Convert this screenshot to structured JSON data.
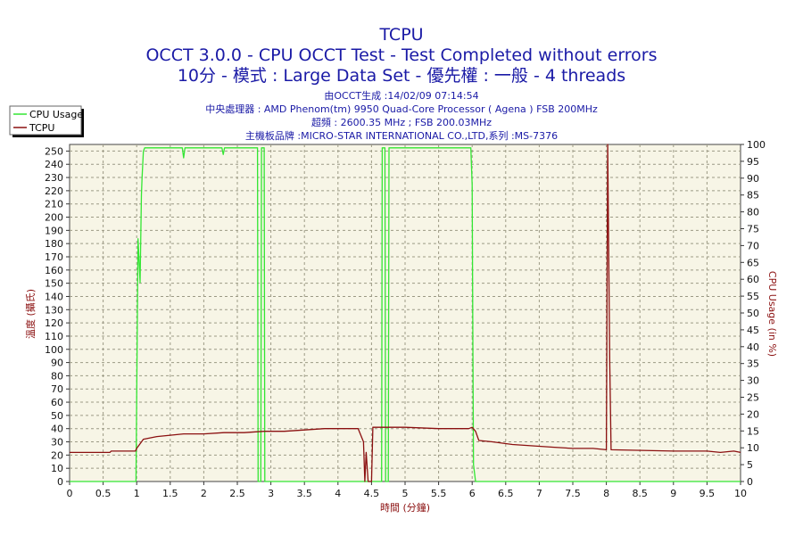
{
  "header": {
    "title": "TCPU",
    "line2": "OCCT 3.0.0 - CPU OCCT Test - Test Completed without errors",
    "line3": "10分 - 模式 : Large Data Set - 優先權 : 一般 - 4 threads",
    "info1": "由OCCT生成 :14/02/09 07:14:54",
    "info2": "中央處理器 : AMD Phenom(tm) 9950 Quad-Core Processor ( Agena ) FSB 200MHz",
    "info3": "超頻 : 2600.35 MHz ; FSB 200.03MHz",
    "info4": "主機板品牌 :MICRO-STAR INTERNATIONAL CO.,LTD,系列 :MS-7376"
  },
  "colors": {
    "cpu_usage": "#33e633",
    "tcpu": "#8b1010",
    "plot_bg": "#f7f5e6",
    "grid": "#9c9a85"
  },
  "chart_data": {
    "type": "line",
    "xlabel": "時間 (分鐘)",
    "ylabel_left": "溫度 (攝氏)",
    "ylabel_right": "CPU Usage (in %)",
    "xlim": [
      0,
      10
    ],
    "ylim_left": [
      0,
      255
    ],
    "ylim_right": [
      0,
      100
    ],
    "x_ticks": [
      "0",
      "0.5",
      "1",
      "1.5",
      "2",
      "2.5",
      "3",
      "3.5",
      "4",
      "4.5",
      "5",
      "5.5",
      "6",
      "6.5",
      "7",
      "7.5",
      "8",
      "8.5",
      "9",
      "9.5",
      "10"
    ],
    "y_ticks_left": [
      "0",
      "10",
      "20",
      "30",
      "40",
      "50",
      "60",
      "70",
      "80",
      "90",
      "100",
      "110",
      "120",
      "130",
      "140",
      "150",
      "160",
      "170",
      "180",
      "190",
      "200",
      "210",
      "220",
      "230",
      "240",
      "250"
    ],
    "y_ticks_right": [
      "0",
      "5",
      "10",
      "15",
      "20",
      "25",
      "30",
      "35",
      "40",
      "45",
      "50",
      "55",
      "60",
      "65",
      "70",
      "75",
      "80",
      "85",
      "90",
      "95",
      "100"
    ],
    "legend": [
      "CPU Usage",
      "TCPU"
    ],
    "legend_position": "top-left",
    "grid": true,
    "series": [
      {
        "name": "CPU Usage",
        "axis": "right",
        "x": [
          0,
          0.99,
          1.0,
          1.02,
          1.05,
          1.07,
          1.08,
          1.1,
          1.12,
          1.15,
          1.2,
          1.5,
          1.68,
          1.7,
          1.72,
          2.0,
          2.27,
          2.29,
          2.31,
          2.6,
          2.8,
          2.81,
          2.85,
          2.86,
          2.9,
          2.91,
          3.5,
          4.0,
          4.5,
          4.65,
          4.66,
          4.7,
          4.71,
          4.75,
          4.76,
          5.0,
          5.5,
          5.98,
          6.0,
          6.01,
          6.02,
          6.05,
          6.06,
          10.0
        ],
        "values": [
          0,
          0,
          25,
          72,
          59,
          85,
          90,
          98,
          99,
          99,
          99,
          99,
          99,
          96,
          99,
          99,
          99,
          97,
          99,
          99,
          99,
          0,
          0,
          99,
          99,
          0,
          0,
          0,
          0,
          0,
          99,
          99,
          0,
          0,
          99,
          99,
          99,
          99,
          88,
          40,
          5,
          0,
          0,
          0
        ]
      },
      {
        "name": "TCPU",
        "axis": "left",
        "x": [
          0,
          0.6,
          0.62,
          0.98,
          1.0,
          1.1,
          1.2,
          1.3,
          1.5,
          1.7,
          2.0,
          2.3,
          2.6,
          2.9,
          3.2,
          3.5,
          3.8,
          4.1,
          4.3,
          4.38,
          4.4,
          4.42,
          4.45,
          4.5,
          4.52,
          4.55,
          5.0,
          5.5,
          5.8,
          5.95,
          6.0,
          6.05,
          6.1,
          6.3,
          6.6,
          6.9,
          7.2,
          7.5,
          7.8,
          8.0,
          8.02,
          8.05,
          8.07,
          9.0,
          9.5,
          9.7,
          9.9,
          10.0
        ],
        "values": [
          22,
          22,
          23,
          23,
          25,
          32,
          33,
          34,
          35,
          36,
          36,
          37,
          37,
          38,
          38,
          39,
          40,
          40,
          40,
          30,
          0,
          22,
          0,
          0,
          41,
          41,
          41,
          40,
          40,
          40,
          41,
          38,
          31,
          30,
          28,
          27,
          26,
          25,
          25,
          24,
          255,
          90,
          24,
          23,
          23,
          22,
          23,
          22
        ]
      }
    ]
  }
}
